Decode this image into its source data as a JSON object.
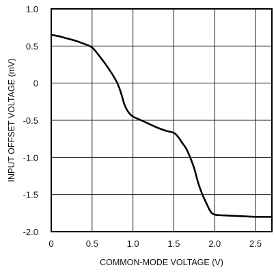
{
  "chart_data": {
    "type": "line",
    "title": "",
    "xlabel": "COMMON-MODE VOLTAGE (V)",
    "ylabel": "INPUT OFFSET VOLTAGE (mV)",
    "xlim": [
      0,
      2.7
    ],
    "ylim": [
      -2.0,
      1.0
    ],
    "x_ticks": [
      0,
      0.5,
      1.0,
      1.5,
      2.0,
      2.5
    ],
    "x_tick_labels": [
      "0",
      "0.5",
      "1.0",
      "1.5",
      "2.0",
      "2.5"
    ],
    "y_ticks": [
      1.0,
      0.5,
      0,
      -0.5,
      -1.0,
      -1.5,
      -2.0
    ],
    "y_tick_labels": [
      "1.0",
      "0.5",
      "0",
      "-0.5",
      "-1.0",
      "-1.5",
      "-2.0"
    ],
    "grid": true,
    "series": [
      {
        "x": [
          0,
          0.1,
          0.2,
          0.3,
          0.4,
          0.45,
          0.5,
          0.55,
          0.6,
          0.7,
          0.8,
          0.85,
          0.9,
          0.95,
          1.0,
          1.1,
          1.2,
          1.3,
          1.4,
          1.5,
          1.55,
          1.6,
          1.65,
          1.7,
          1.75,
          1.8,
          1.85,
          1.9,
          1.95,
          2.0,
          2.1,
          2.3,
          2.5,
          2.7
        ],
        "y": [
          0.65,
          0.63,
          0.6,
          0.57,
          0.53,
          0.51,
          0.48,
          0.42,
          0.35,
          0.2,
          0.02,
          -0.12,
          -0.3,
          -0.4,
          -0.45,
          -0.5,
          -0.55,
          -0.6,
          -0.64,
          -0.67,
          -0.72,
          -0.8,
          -0.88,
          -1.0,
          -1.15,
          -1.35,
          -1.5,
          -1.62,
          -1.73,
          -1.77,
          -1.78,
          -1.79,
          -1.8,
          -1.8
        ]
      }
    ]
  }
}
